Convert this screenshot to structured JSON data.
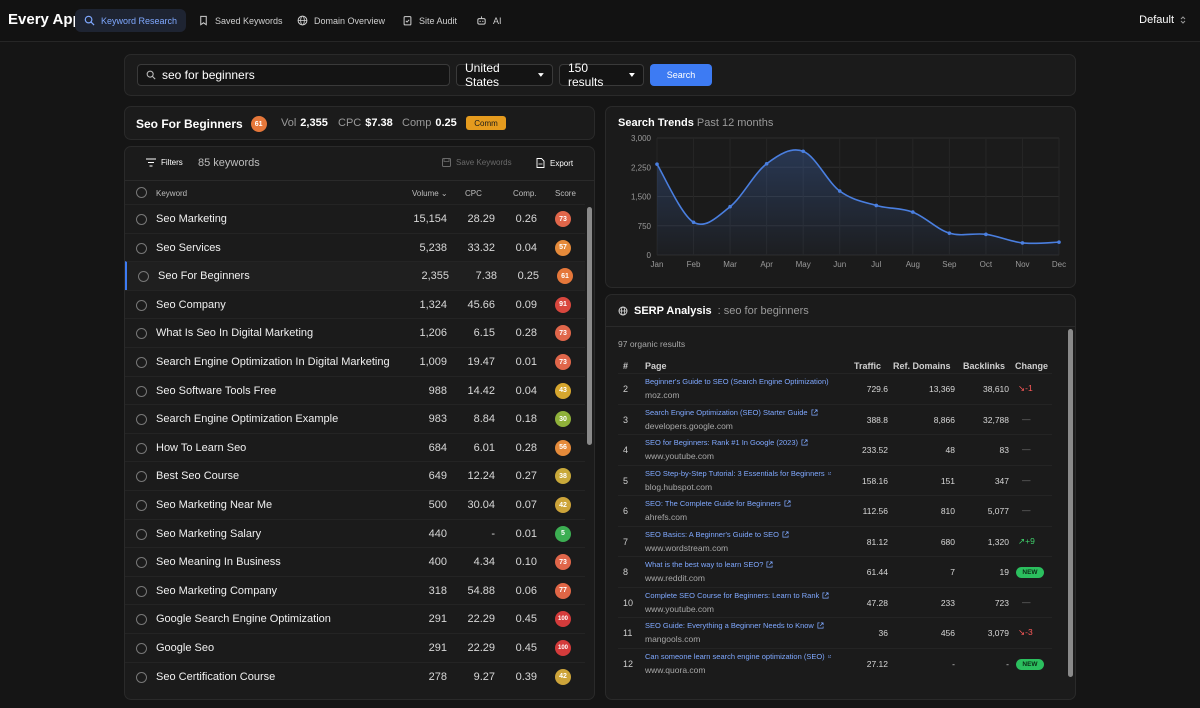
{
  "app": {
    "title": "Every App"
  },
  "nav": [
    {
      "label": "Keyword Research",
      "icon": "search-icon",
      "active": true
    },
    {
      "label": "Saved Keywords",
      "icon": "bookmark-icon"
    },
    {
      "label": "Domain Overview",
      "icon": "globe-icon"
    },
    {
      "label": "Site Audit",
      "icon": "clipboard-check-icon"
    },
    {
      "label": "AI",
      "icon": "robot-icon"
    }
  ],
  "workspace": {
    "label": "Default"
  },
  "search": {
    "query": "seo for beginners",
    "country": "United States",
    "results": "150 results",
    "button": "Search"
  },
  "keyword": {
    "title": "Seo For Beginners",
    "score": "61",
    "vol_label": "Vol",
    "vol": "2,355",
    "cpc_label": "CPC",
    "cpc": "$7.38",
    "comp_label": "Comp",
    "comp": "0.25",
    "badge": "Comm"
  },
  "table": {
    "filters": "Filters",
    "count": "85 keywords",
    "save": "Save Keywords",
    "export": "Export",
    "headers": {
      "keyword": "Keyword",
      "volume": "Volume",
      "cpc": "CPC",
      "comp": "Comp.",
      "score": "Score"
    },
    "rows": [
      {
        "kw": "Seo Marketing",
        "vol": "15,154",
        "cpc": "28.29",
        "comp": "0.26",
        "score": "73",
        "color": "#e0664a"
      },
      {
        "kw": "Seo Services",
        "vol": "5,238",
        "cpc": "33.32",
        "comp": "0.04",
        "score": "57",
        "color": "#e58a3a"
      },
      {
        "kw": "Seo For Beginners",
        "vol": "2,355",
        "cpc": "7.38",
        "comp": "0.25",
        "score": "61",
        "color": "#e5773a",
        "selected": true
      },
      {
        "kw": "Seo Company",
        "vol": "1,324",
        "cpc": "45.66",
        "comp": "0.09",
        "score": "91",
        "color": "#d9473e"
      },
      {
        "kw": "What Is Seo In Digital Marketing",
        "vol": "1,206",
        "cpc": "6.15",
        "comp": "0.28",
        "score": "73",
        "color": "#e0664a"
      },
      {
        "kw": "Search Engine Optimization In Digital Marketing",
        "vol": "1,009",
        "cpc": "19.47",
        "comp": "0.01",
        "score": "73",
        "color": "#e0664a"
      },
      {
        "kw": "Seo Software Tools Free",
        "vol": "988",
        "cpc": "14.42",
        "comp": "0.04",
        "score": "43",
        "color": "#d6a62e"
      },
      {
        "kw": "Search Engine Optimization Example",
        "vol": "983",
        "cpc": "8.84",
        "comp": "0.18",
        "score": "30",
        "color": "#8fb13a"
      },
      {
        "kw": "How To Learn Seo",
        "vol": "684",
        "cpc": "6.01",
        "comp": "0.28",
        "score": "56",
        "color": "#e58a3a"
      },
      {
        "kw": "Best Seo Course",
        "vol": "649",
        "cpc": "12.24",
        "comp": "0.27",
        "score": "38",
        "color": "#c9a93a"
      },
      {
        "kw": "Seo Marketing Near Me",
        "vol": "500",
        "cpc": "30.04",
        "comp": "0.07",
        "score": "42",
        "color": "#cda43a"
      },
      {
        "kw": "Seo Marketing Salary",
        "vol": "440",
        "cpc": "-",
        "comp": "0.01",
        "score": "5",
        "color": "#3cae52"
      },
      {
        "kw": "Seo Meaning In Business",
        "vol": "400",
        "cpc": "4.34",
        "comp": "0.10",
        "score": "73",
        "color": "#e0664a"
      },
      {
        "kw": "Seo Marketing Company",
        "vol": "318",
        "cpc": "54.88",
        "comp": "0.06",
        "score": "77",
        "color": "#e06646"
      },
      {
        "kw": "Google Search Engine Optimization",
        "vol": "291",
        "cpc": "22.29",
        "comp": "0.45",
        "score": "100",
        "color": "#d43b3b"
      },
      {
        "kw": "Google Seo",
        "vol": "291",
        "cpc": "22.29",
        "comp": "0.45",
        "score": "100",
        "color": "#d43b3b"
      },
      {
        "kw": "Seo Certification Course",
        "vol": "278",
        "cpc": "9.27",
        "comp": "0.39",
        "score": "42",
        "color": "#cda43a"
      }
    ]
  },
  "trends": {
    "title": "Search Trends",
    "subtitle": "Past 12 months",
    "chart_data": {
      "type": "area",
      "x": [
        "Jan",
        "Feb",
        "Mar",
        "Apr",
        "May",
        "Jun",
        "Jul",
        "Aug",
        "Sep",
        "Oct",
        "Nov",
        "Dec"
      ],
      "y_ticks": [
        "0",
        "750",
        "1,500",
        "2,250",
        "3,000"
      ],
      "ylim": [
        0,
        3000
      ],
      "series": [
        {
          "values": [
            2330,
            840,
            1240,
            2340,
            2660,
            1640,
            1270,
            1100,
            560,
            530,
            310,
            330
          ]
        }
      ],
      "color": "#4a7fe0",
      "grid": true
    }
  },
  "serp": {
    "title": "SERP Analysis",
    "query": ": seo for beginners",
    "count": "97 organic results",
    "headers": {
      "idx": "#",
      "page": "Page",
      "traffic": "Traffic",
      "ref": "Ref. Domains",
      "backlinks": "Backlinks",
      "change": "Change"
    },
    "rows": [
      {
        "idx": "2",
        "title": "Beginner's Guide to SEO (Search Engine Optimization)",
        "domain": "moz.com",
        "traffic": "729.6",
        "ref": "13,369",
        "backlinks": "38,610",
        "change": "-1",
        "change_type": "down"
      },
      {
        "idx": "3",
        "title": "Search Engine Optimization (SEO) Starter Guide",
        "domain": "developers.google.com",
        "traffic": "388.8",
        "ref": "8,866",
        "backlinks": "32,788",
        "change": "—",
        "change_type": "none"
      },
      {
        "idx": "4",
        "title": "SEO for Beginners: Rank #1 In Google (2023)",
        "domain": "www.youtube.com",
        "traffic": "233.52",
        "ref": "48",
        "backlinks": "83",
        "change": "—",
        "change_type": "none"
      },
      {
        "idx": "5",
        "title": "SEO Step-by-Step Tutorial: 3 Essentials for Beginners",
        "domain": "blog.hubspot.com",
        "traffic": "158.16",
        "ref": "151",
        "backlinks": "347",
        "change": "—",
        "change_type": "none"
      },
      {
        "idx": "6",
        "title": "SEO: The Complete Guide for Beginners",
        "domain": "ahrefs.com",
        "traffic": "112.56",
        "ref": "810",
        "backlinks": "5,077",
        "change": "—",
        "change_type": "none"
      },
      {
        "idx": "7",
        "title": "SEO Basics: A Beginner's Guide to SEO",
        "domain": "www.wordstream.com",
        "traffic": "81.12",
        "ref": "680",
        "backlinks": "1,320",
        "change": "+9",
        "change_type": "up"
      },
      {
        "idx": "8",
        "title": "What is the best way to learn SEO?",
        "domain": "www.reddit.com",
        "traffic": "61.44",
        "ref": "7",
        "backlinks": "19",
        "change": "NEW",
        "change_type": "new"
      },
      {
        "idx": "10",
        "title": "Complete SEO Course for Beginners: Learn to Rank",
        "domain": "www.youtube.com",
        "traffic": "47.28",
        "ref": "233",
        "backlinks": "723",
        "change": "—",
        "change_type": "none"
      },
      {
        "idx": "11",
        "title": "SEO Guide: Everything a Beginner Needs to Know",
        "domain": "mangools.com",
        "traffic": "36",
        "ref": "456",
        "backlinks": "3,079",
        "change": "-3",
        "change_type": "down"
      },
      {
        "idx": "12",
        "title": "Can someone learn search engine optimization (SEO)",
        "domain": "www.quora.com",
        "traffic": "27.12",
        "ref": "-",
        "backlinks": "-",
        "change": "NEW",
        "change_type": "new"
      }
    ]
  }
}
